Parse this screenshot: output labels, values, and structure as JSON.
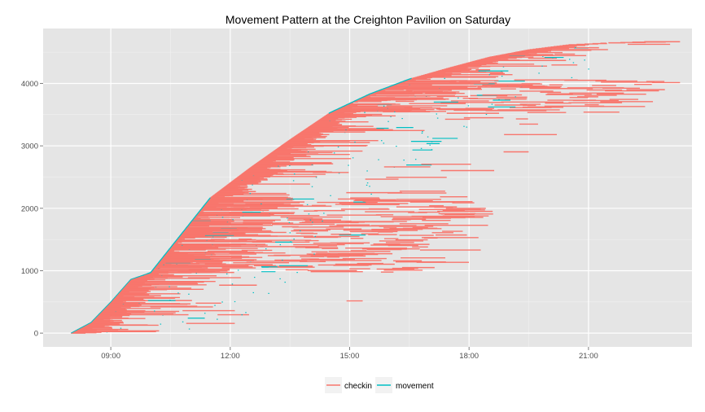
{
  "chart_data": {
    "type": "line",
    "title": "Movement Pattern at the Creighton Pavilion on Saturday",
    "xlabel": "",
    "ylabel": "",
    "x_ticks": [
      "09:00",
      "12:00",
      "15:00",
      "18:00",
      "21:00"
    ],
    "x_tick_hours": [
      9,
      12,
      15,
      18,
      21
    ],
    "xlim_hours": [
      7.3,
      23.6
    ],
    "y_ticks": [
      0,
      1000,
      2000,
      3000,
      4000
    ],
    "ylim": [
      -220,
      4880
    ],
    "grid": true,
    "legend_position": "bottom",
    "series": [
      {
        "name": "checkin",
        "color": "#F8766D",
        "description_points": {
          "front_hours": [
            8.0,
            8.5,
            9.0,
            9.5,
            10.0,
            11.5,
            12.5,
            13.5,
            14.5,
            15.5,
            16.5,
            17.5,
            18.5,
            19.5,
            20.5,
            21.5,
            22.5
          ],
          "front_counts": [
            0,
            170,
            500,
            860,
            970,
            2170,
            2650,
            3100,
            3530,
            3830,
            4070,
            4250,
            4420,
            4540,
            4620,
            4650,
            4670
          ]
        }
      },
      {
        "name": "movement",
        "color": "#00BFC4"
      }
    ]
  },
  "legend": {
    "items": [
      {
        "label": "checkin",
        "color": "#F8766D"
      },
      {
        "label": "movement",
        "color": "#00BFC4"
      }
    ]
  }
}
